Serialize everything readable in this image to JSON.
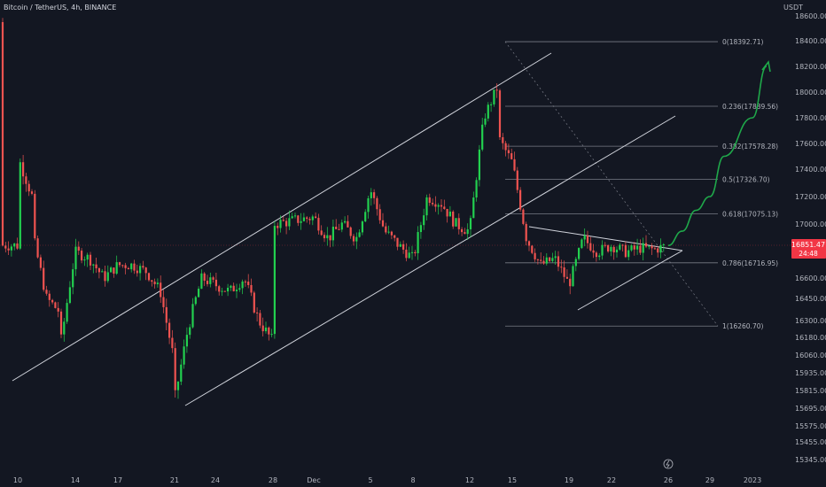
{
  "header": {
    "symbol": "Bitcoin / TetherUS, 4h, BINANCE",
    "currency": "USDT"
  },
  "colors": {
    "background": "#131722",
    "up": "#26a69a",
    "up_bright": "#22d04f",
    "down": "#ef5350",
    "line": "#d1d4dc",
    "fib": "#787b86",
    "projection": "#1fa84a",
    "price_tag": "#f23645"
  },
  "chart_data": {
    "type": "candlestick",
    "title": "",
    "ylim": [
      15300,
      18700
    ],
    "y_ticks": [
      "18600.00",
      "18400.00",
      "18200.00",
      "18000.00",
      "17800.00",
      "17600.00",
      "17400.00",
      "17200.00",
      "17000.00",
      "16600.00",
      "16450.00",
      "16300.00",
      "16180.00",
      "16060.00",
      "15935.00",
      "15815.00",
      "15695.00",
      "15575.00",
      "15455.00",
      "15345.00"
    ],
    "x_ticks": [
      "10",
      "14",
      "17",
      "21",
      "24",
      "28",
      "Dec",
      "5",
      "8",
      "12",
      "15",
      "19",
      "22",
      "26",
      "29",
      "2023"
    ],
    "current_price": {
      "value": "16851.47",
      "countdown": "24:48"
    },
    "fibonacci": [
      {
        "label": "0(18392.71)",
        "value": 18392.71
      },
      {
        "label": "0.236(17889.56)",
        "value": 17889.56
      },
      {
        "label": "0.382(17578.28)",
        "value": 17578.28
      },
      {
        "label": "0.5(17326.70)",
        "value": 17326.7
      },
      {
        "label": "0.618(17075.13)",
        "value": 17075.13
      },
      {
        "label": "0.786(16716.95)",
        "value": 16716.95
      },
      {
        "label": "1(16260.70)",
        "value": 16260.7
      }
    ],
    "price_path": [
      [
        "Nov 10",
        18550
      ],
      [
        "Nov 10",
        17500
      ],
      [
        "Nov 11",
        17200
      ],
      [
        "Nov 11",
        16950
      ],
      [
        "Nov 12",
        16450
      ],
      [
        "Nov 13",
        16350
      ],
      [
        "Nov 13",
        16150
      ],
      [
        "Nov 14",
        16800
      ],
      [
        "Nov 15",
        16750
      ],
      [
        "Nov 16",
        16600
      ],
      [
        "Nov 17",
        16700
      ],
      [
        "Nov 18",
        16700
      ],
      [
        "Nov 19",
        16650
      ],
      [
        "Nov 20",
        16500
      ],
      [
        "Nov 21",
        16000
      ],
      [
        "Nov 21",
        15750
      ],
      [
        "Nov 22",
        16250
      ],
      [
        "Nov 23",
        16600
      ],
      [
        "Nov 24",
        16550
      ],
      [
        "Nov 25",
        16500
      ],
      [
        "Nov 26",
        16600
      ],
      [
        "Nov 27",
        16300
      ],
      [
        "Nov 28",
        16150
      ],
      [
        "Nov 29",
        16450
      ],
      [
        "Nov 30",
        17000
      ],
      [
        "Dec 1",
        17050
      ],
      [
        "Dec 2",
        16900
      ],
      [
        "Dec 3",
        17000
      ],
      [
        "Dec 4",
        16900
      ],
      [
        "Dec 5",
        17250
      ],
      [
        "Dec 6",
        16950
      ],
      [
        "Dec 7",
        16850
      ],
      [
        "Dec 8",
        16750
      ],
      [
        "Dec 9",
        17200
      ],
      [
        "Dec 10",
        17150
      ],
      [
        "Dec 11",
        17000
      ],
      [
        "Dec 12",
        16950
      ],
      [
        "Dec 13",
        17800
      ],
      [
        "Dec 14",
        18050
      ],
      [
        "Dec 14",
        17650
      ],
      [
        "Dec 15",
        17450
      ],
      [
        "Dec 16",
        16900
      ],
      [
        "Dec 17",
        16700
      ],
      [
        "Dec 18",
        16750
      ],
      [
        "Dec 19",
        16550
      ],
      [
        "Dec 20",
        16900
      ],
      [
        "Dec 21",
        16800
      ],
      [
        "Dec 22",
        16850
      ],
      [
        "Dec 23",
        16800
      ],
      [
        "Dec 24",
        16830
      ],
      [
        "Dec 25",
        16820
      ],
      [
        "Dec 26",
        16850
      ]
    ],
    "projection_path": [
      [
        "Dec 26",
        16850
      ],
      [
        "Dec 27",
        16950
      ],
      [
        "Dec 28",
        17100
      ],
      [
        "Dec 29",
        17200
      ],
      [
        "Dec 30",
        17500
      ],
      [
        "Jan 1",
        17800
      ],
      [
        "Jan 2",
        18200
      ]
    ]
  }
}
